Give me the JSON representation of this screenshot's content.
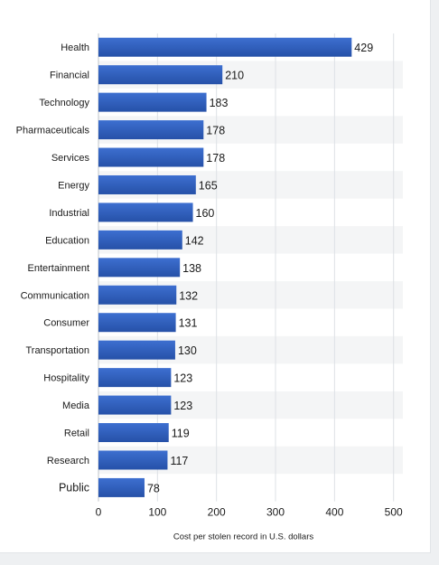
{
  "chart_data": {
    "type": "bar",
    "orientation": "horizontal",
    "categories": [
      "Health",
      "Financial",
      "Technology",
      "Pharmaceuticals",
      "Services",
      "Energy",
      "Industrial",
      "Education",
      "Entertainment",
      "Communication",
      "Consumer",
      "Transportation",
      "Hospitality",
      "Media",
      "Retail",
      "Research",
      "Public"
    ],
    "values": [
      429,
      210,
      183,
      178,
      178,
      165,
      160,
      142,
      138,
      132,
      131,
      130,
      123,
      123,
      119,
      117,
      78
    ],
    "value_labels": [
      "429",
      "210",
      "183",
      "178",
      "178",
      "165",
      "160",
      "142",
      "138",
      "132",
      "131",
      "130",
      "123",
      "123",
      "119",
      "117",
      "78"
    ],
    "xlabel": "Cost per stolen record in U.S. dollars",
    "ylabel": "",
    "title": "",
    "xlim": [
      0,
      500
    ],
    "xticks": [
      0,
      100,
      200,
      300,
      400,
      500
    ],
    "xtick_labels": [
      "0",
      "100",
      "200",
      "300",
      "400",
      "500"
    ],
    "grid": "vertical",
    "bar_color": "#2e5cb8",
    "band_color": "#f4f5f6"
  }
}
